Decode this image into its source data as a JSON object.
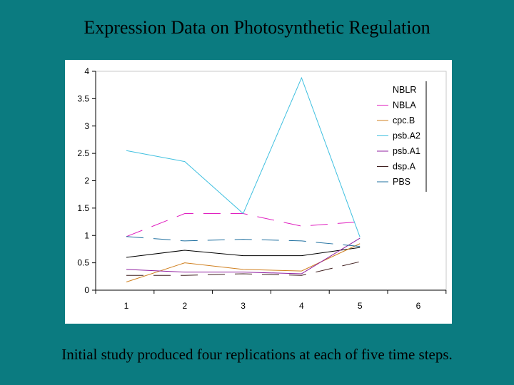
{
  "slide": {
    "title": "Expression Data on Photosynthetic Regulation",
    "caption": "Initial study produced four replications at each of five time steps."
  },
  "chart_data": {
    "type": "line",
    "title": "",
    "xlabel": "",
    "ylabel": "",
    "x": [
      1,
      2,
      3,
      4,
      5
    ],
    "x_ticks": [
      "1",
      "2",
      "3",
      "4",
      "5",
      "6"
    ],
    "y_ticks": [
      "0",
      "0.5",
      "1",
      "1.5",
      "2",
      "2.5",
      "3",
      "3.5",
      "4"
    ],
    "xlim": [
      1,
      6
    ],
    "ylim": [
      0,
      4
    ],
    "grid": false,
    "legend_position": "right",
    "series": [
      {
        "name": "NBLR",
        "color": "#000000",
        "dash": "solid",
        "values": [
          0.6,
          0.73,
          0.63,
          0.63,
          0.78
        ]
      },
      {
        "name": "NBLA",
        "color": "#e020c0",
        "dash": "long-dash",
        "values": [
          0.98,
          1.4,
          1.4,
          1.17,
          1.25
        ]
      },
      {
        "name": "cpc.B",
        "color": "#d08020",
        "dash": "solid",
        "values": [
          0.15,
          0.5,
          0.38,
          0.35,
          0.85
        ]
      },
      {
        "name": "psb.A2",
        "color": "#40c0e0",
        "dash": "solid",
        "values": [
          2.55,
          2.35,
          1.4,
          3.88,
          0.97
        ]
      },
      {
        "name": "psb.A1",
        "color": "#9020a0",
        "dash": "solid",
        "values": [
          0.38,
          0.33,
          0.33,
          0.3,
          0.95
        ]
      },
      {
        "name": "dsp.A",
        "color": "#402020",
        "dash": "long-dash",
        "values": [
          0.27,
          0.27,
          0.3,
          0.27,
          0.52
        ]
      },
      {
        "name": "PBS",
        "color": "#2070a0",
        "dash": "long-dash",
        "values": [
          0.98,
          0.9,
          0.93,
          0.9,
          0.8
        ]
      }
    ]
  }
}
